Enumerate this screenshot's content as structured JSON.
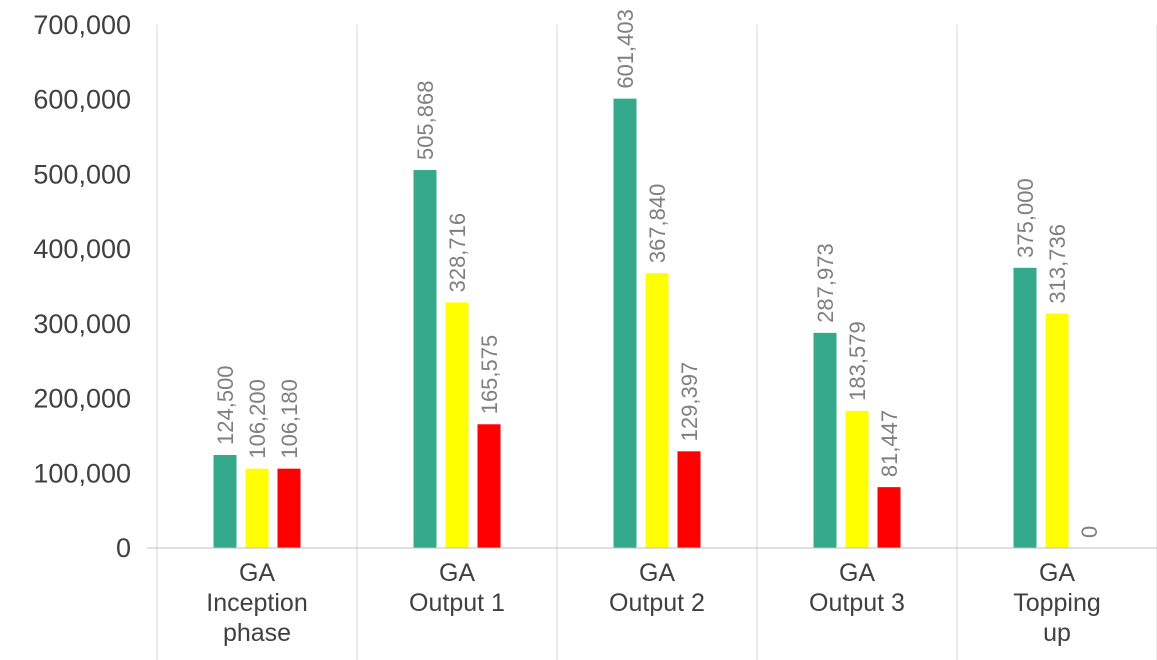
{
  "chart_data": {
    "type": "bar",
    "categories": [
      [
        "GA",
        "Inception",
        "phase"
      ],
      [
        "GA",
        "Output 1"
      ],
      [
        "GA",
        "Output 2"
      ],
      [
        "GA",
        "Output 3"
      ],
      [
        "GA",
        "Topping",
        "up"
      ]
    ],
    "series": [
      {
        "color": "#34a98b",
        "values": [
          124500,
          505868,
          601403,
          287973,
          375000
        ]
      },
      {
        "color": "#ffff00",
        "values": [
          106200,
          328716,
          367840,
          183579,
          313736
        ]
      },
      {
        "color": "#ff0000",
        "values": [
          106180,
          165575,
          129397,
          81447,
          0
        ]
      }
    ],
    "data_labels": [
      [
        "124,500",
        "505,868",
        "601,403",
        "287,973",
        "375,000"
      ],
      [
        "106,200",
        "328,716",
        "367,840",
        "183,579",
        "313,736"
      ],
      [
        "106,180",
        "165,575",
        "129,397",
        "81,447",
        "0"
      ]
    ],
    "y_ticks": [
      "0",
      "100,000",
      "200,000",
      "300,000",
      "400,000",
      "500,000",
      "600,000",
      "700,000"
    ],
    "ylim": [
      0,
      700000
    ],
    "grid": false,
    "legend": false
  }
}
